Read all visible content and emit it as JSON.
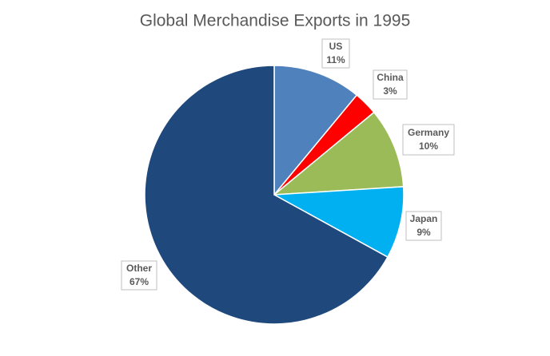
{
  "chart_data": {
    "type": "pie",
    "title": "Global Merchandise Exports in 1995",
    "categories": [
      "US",
      "China",
      "Germany",
      "Japan",
      "Other"
    ],
    "values": [
      11,
      3,
      10,
      9,
      67
    ],
    "value_labels": [
      "11%",
      "3%",
      "10%",
      "9%",
      "67%"
    ],
    "colors": [
      "#4f81bd",
      "#ff0000",
      "#9bbb59",
      "#00b0f0",
      "#1f497d"
    ]
  }
}
